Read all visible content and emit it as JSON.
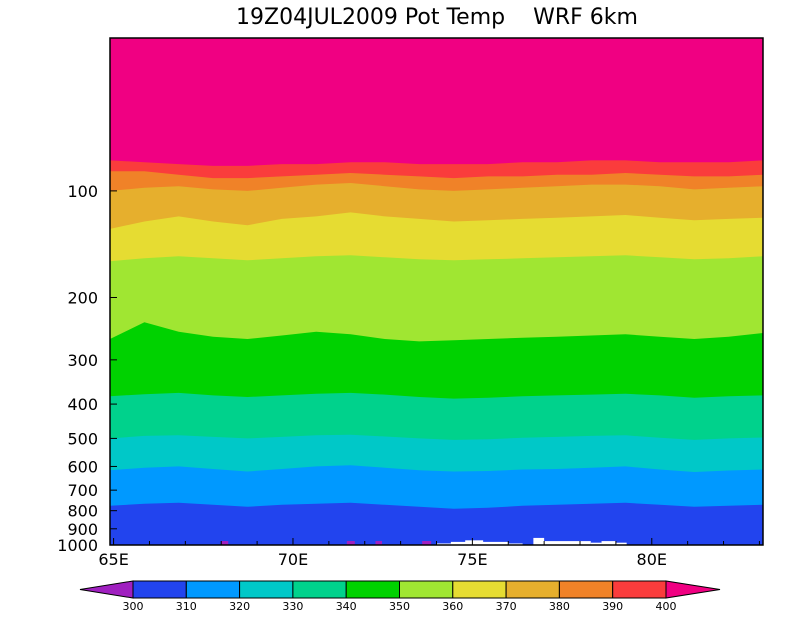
{
  "chart_data": {
    "type": "heatmap",
    "title": "19Z04JUL2009 Pot Temp    WRF 6km",
    "x_ticks": [
      {
        "value": 65,
        "label": "65E"
      },
      {
        "value": 70,
        "label": "70E"
      },
      {
        "value": 75,
        "label": "75E"
      },
      {
        "value": 80,
        "label": "80E"
      }
    ],
    "xlim": [
      64.9,
      83.1
    ],
    "y_scale": "log",
    "ylim": [
      1000,
      37
    ],
    "y_ticks": [
      {
        "value": 100,
        "label": "100"
      },
      {
        "value": 200,
        "label": "200"
      },
      {
        "value": 300,
        "label": "300"
      },
      {
        "value": 400,
        "label": "400"
      },
      {
        "value": 500,
        "label": "500"
      },
      {
        "value": 600,
        "label": "600"
      },
      {
        "value": 700,
        "label": "700"
      },
      {
        "value": 800,
        "label": "800"
      },
      {
        "value": 900,
        "label": "900"
      },
      {
        "value": 1000,
        "label": "1000"
      }
    ],
    "contour_levels": [
      300,
      310,
      320,
      330,
      340,
      350,
      360,
      370,
      380,
      390,
      400
    ],
    "colorbar_labels": [
      "300",
      "310",
      "320",
      "330",
      "340",
      "350",
      "360",
      "370",
      "380",
      "390",
      "400"
    ],
    "colors": {
      "below_300": "#a020c0",
      "300_310": "#2244ee",
      "310_320": "#0099ff",
      "320_330": "#00c8c8",
      "330_340": "#00d28c",
      "340_350": "#00d200",
      "350_360": "#a0e632",
      "360_370": "#e6dc32",
      "370_380": "#e6af2d",
      "380_390": "#f08228",
      "390_400": "#fa3c3c",
      "above_400": "#f00082"
    },
    "isentrope_pressure_hpa": [
      {
        "theta": 310,
        "pressure": [
          775,
          765,
          760,
          770,
          780,
          770,
          765,
          760,
          770,
          780,
          790,
          785,
          775,
          770,
          765,
          760,
          770,
          780,
          775,
          770
        ]
      },
      {
        "theta": 320,
        "pressure": [
          615,
          605,
          600,
          610,
          620,
          610,
          600,
          595,
          605,
          615,
          620,
          618,
          612,
          610,
          605,
          600,
          612,
          622,
          616,
          612
        ]
      },
      {
        "theta": 330,
        "pressure": [
          500,
          492,
          490,
          495,
          500,
          495,
          490,
          488,
          494,
          500,
          505,
          503,
          498,
          495,
          492,
          490,
          498,
          505,
          500,
          497
        ]
      },
      {
        "theta": 340,
        "pressure": [
          380,
          375,
          372,
          378,
          382,
          378,
          374,
          372,
          376,
          382,
          386,
          384,
          380,
          378,
          376,
          374,
          378,
          384,
          380,
          378
        ]
      },
      {
        "theta": 350,
        "pressure": [
          262,
          235,
          250,
          258,
          262,
          256,
          250,
          254,
          262,
          266,
          264,
          262,
          260,
          258,
          256,
          254,
          258,
          262,
          258,
          252
        ]
      },
      {
        "theta": 360,
        "pressure": [
          158,
          155,
          153,
          155,
          157,
          155,
          153,
          152,
          154,
          156,
          157,
          156,
          155,
          154,
          153,
          152,
          154,
          156,
          155,
          153
        ]
      },
      {
        "theta": 370,
        "pressure": [
          128,
          122,
          118,
          122,
          125,
          120,
          118,
          115,
          118,
          120,
          122,
          121,
          120,
          119,
          118,
          117,
          119,
          121,
          120,
          119
        ]
      },
      {
        "theta": 380,
        "pressure": [
          100,
          98,
          97,
          99,
          100,
          98,
          96,
          95,
          97,
          99,
          100,
          99,
          98,
          97,
          96,
          96,
          97,
          99,
          98,
          97
        ]
      },
      {
        "theta": 390,
        "pressure": [
          88,
          88,
          90,
          92,
          92,
          91,
          90,
          89,
          90,
          91,
          92,
          91,
          91,
          90,
          90,
          89,
          90,
          91,
          91,
          90
        ]
      },
      {
        "theta": 400,
        "pressure": [
          82,
          83,
          84,
          85,
          85,
          84,
          84,
          83,
          83,
          84,
          84,
          84,
          83,
          83,
          82,
          82,
          83,
          83,
          83,
          82
        ]
      }
    ]
  }
}
